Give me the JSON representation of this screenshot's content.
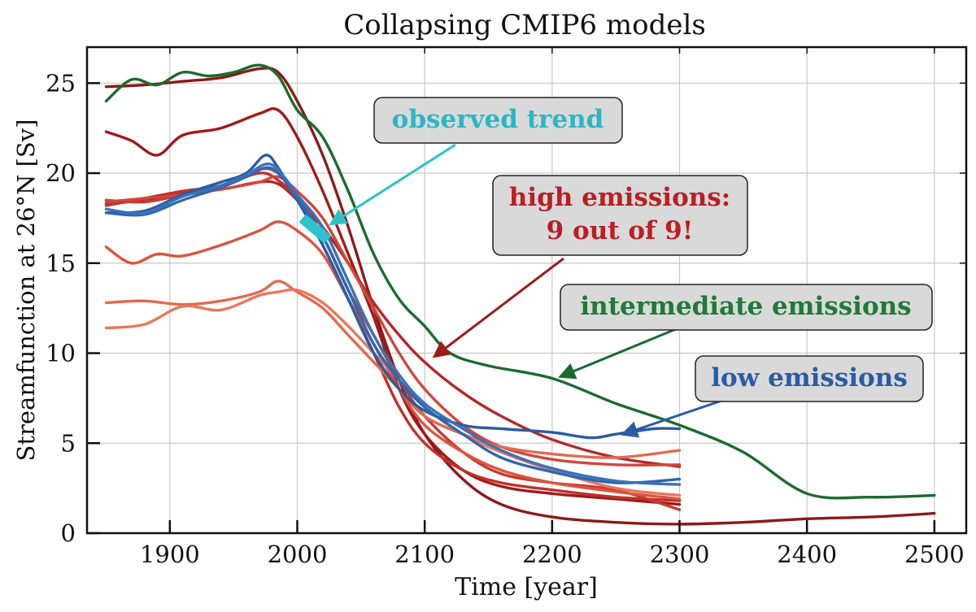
{
  "chart_data": {
    "type": "line",
    "title": "Collapsing CMIP6 models",
    "xlabel": "Time [year]",
    "ylabel": "Streamfunction at 26°N [Sv]",
    "xlim": [
      1835,
      2525
    ],
    "ylim": [
      0,
      27
    ],
    "xticks": [
      1900,
      2000,
      2100,
      2200,
      2300,
      2400,
      2500
    ],
    "yticks": [
      0,
      5,
      10,
      15,
      20,
      25
    ],
    "grid": true,
    "series": [
      {
        "group": "intermediate",
        "color": "#1b6b2e",
        "x": [
          1850,
          1870,
          1890,
          1910,
          1930,
          1950,
          1970,
          1985,
          2000,
          2020,
          2040,
          2060,
          2080,
          2100,
          2120,
          2150,
          2200,
          2250,
          2300,
          2350,
          2400,
          2450,
          2500
        ],
        "y": [
          24.0,
          25.2,
          24.9,
          25.6,
          25.4,
          25.6,
          26.0,
          25.4,
          23.5,
          22.0,
          19.0,
          15.5,
          13.0,
          11.5,
          10.0,
          9.3,
          8.6,
          7.2,
          6.0,
          4.5,
          2.2,
          2.0,
          2.1
        ]
      },
      {
        "group": "high",
        "color": "#8b1a1a",
        "x": [
          1850,
          1880,
          1910,
          1940,
          1970,
          1985,
          2000,
          2020,
          2040,
          2060,
          2080,
          2100,
          2130,
          2160,
          2200,
          2250,
          2300,
          2350,
          2400,
          2450,
          2500
        ],
        "y": [
          24.8,
          24.9,
          25.1,
          25.3,
          25.8,
          25.6,
          24.0,
          21.0,
          17.0,
          12.5,
          8.5,
          5.5,
          3.0,
          1.6,
          0.9,
          0.6,
          0.5,
          0.6,
          0.8,
          0.9,
          1.1
        ]
      },
      {
        "group": "high",
        "color": "#9e1b1b",
        "x": [
          1850,
          1870,
          1890,
          1910,
          1940,
          1970,
          1985,
          2000,
          2020,
          2040,
          2060,
          2080,
          2100,
          2130,
          2160,
          2200,
          2250,
          2300
        ],
        "y": [
          22.3,
          21.8,
          21.0,
          22.1,
          22.5,
          23.3,
          23.5,
          22.0,
          19.0,
          15.5,
          12.0,
          8.0,
          5.5,
          3.5,
          2.6,
          2.2,
          1.9,
          1.6
        ]
      },
      {
        "group": "high",
        "color": "#b52727",
        "x": [
          1850,
          1880,
          1910,
          1940,
          1970,
          1985,
          2000,
          2020,
          2040,
          2060,
          2080,
          2100,
          2130,
          2160,
          2200,
          2250,
          2300
        ],
        "y": [
          18.3,
          18.5,
          18.9,
          19.1,
          19.5,
          19.4,
          18.5,
          17.0,
          15.0,
          12.8,
          11.0,
          9.5,
          7.8,
          6.5,
          5.2,
          4.2,
          3.7
        ]
      },
      {
        "group": "high",
        "color": "#c0302b",
        "x": [
          1850,
          1880,
          1910,
          1940,
          1970,
          1985,
          2000,
          2020,
          2040,
          2060,
          2080,
          2100,
          2130,
          2160,
          2200,
          2250,
          2300
        ],
        "y": [
          18.2,
          18.6,
          19.0,
          19.3,
          20.0,
          19.6,
          18.5,
          16.0,
          13.0,
          10.0,
          7.0,
          5.0,
          3.5,
          2.8,
          2.4,
          2.0,
          1.8
        ]
      },
      {
        "group": "high",
        "color": "#c83a2f",
        "x": [
          1850,
          1880,
          1910,
          1940,
          1970,
          1985,
          2000,
          2020,
          2040,
          2060,
          2080,
          2100,
          2130,
          2160,
          2200,
          2250,
          2300
        ],
        "y": [
          18.5,
          18.4,
          18.8,
          19.3,
          20.2,
          20.0,
          18.8,
          16.5,
          13.5,
          11.0,
          8.5,
          6.5,
          4.5,
          3.3,
          2.8,
          2.4,
          1.3
        ]
      },
      {
        "group": "high",
        "color": "#d1463a",
        "x": [
          1850,
          1880,
          1910,
          1940,
          1970,
          1985,
          2000,
          2020,
          2040,
          2060,
          2080,
          2100,
          2130,
          2160,
          2200,
          2250,
          2300
        ],
        "y": [
          18.4,
          18.6,
          18.8,
          19.1,
          19.5,
          19.8,
          19.0,
          17.5,
          15.0,
          12.5,
          10.0,
          8.0,
          6.0,
          4.8,
          4.1,
          3.8,
          3.8
        ]
      },
      {
        "group": "high",
        "color": "#d9553f",
        "x": [
          1850,
          1870,
          1890,
          1910,
          1940,
          1970,
          1985,
          2000,
          2020,
          2040,
          2060,
          2080,
          2100,
          2130,
          2160,
          2200,
          2250,
          2300
        ],
        "y": [
          15.9,
          15.0,
          15.5,
          15.4,
          16.0,
          16.8,
          17.3,
          16.8,
          15.5,
          13.0,
          10.5,
          8.0,
          6.0,
          4.5,
          3.5,
          2.8,
          2.3,
          1.9
        ]
      },
      {
        "group": "high",
        "color": "#e06a4f",
        "x": [
          1850,
          1880,
          1910,
          1940,
          1970,
          1985,
          2000,
          2020,
          2040,
          2060,
          2080,
          2100,
          2130,
          2160,
          2200,
          2250,
          2300
        ],
        "y": [
          12.8,
          12.9,
          12.7,
          12.9,
          13.4,
          14.0,
          13.4,
          12.5,
          11.0,
          9.5,
          8.0,
          6.5,
          5.5,
          4.8,
          4.4,
          4.2,
          4.6
        ]
      },
      {
        "group": "high",
        "color": "#e8785c",
        "x": [
          1850,
          1880,
          1910,
          1940,
          1970,
          1985,
          2000,
          2020,
          2040,
          2060,
          2080,
          2100,
          2130,
          2160,
          2200,
          2250,
          2300
        ],
        "y": [
          11.4,
          11.6,
          12.6,
          12.4,
          13.2,
          13.4,
          13.5,
          12.8,
          11.5,
          10.0,
          8.5,
          7.0,
          5.5,
          4.5,
          3.5,
          2.5,
          2.1
        ]
      },
      {
        "group": "low",
        "color": "#2a5ca3",
        "x": [
          1850,
          1880,
          1910,
          1940,
          1960,
          1975,
          1985,
          2000,
          2020,
          2040,
          2060,
          2080,
          2100,
          2130,
          2160,
          2200,
          2230,
          2250,
          2280,
          2300
        ],
        "y": [
          17.8,
          17.9,
          18.8,
          19.5,
          20.0,
          21.0,
          20.3,
          18.5,
          16.0,
          13.0,
          10.0,
          8.0,
          6.8,
          6.0,
          5.8,
          5.6,
          5.3,
          5.5,
          5.8,
          5.8
        ]
      },
      {
        "group": "low",
        "color": "#2e67b0",
        "x": [
          1850,
          1880,
          1910,
          1940,
          1960,
          1975,
          1985,
          2000,
          2020,
          2040,
          2060,
          2080,
          2100,
          2130,
          2160,
          2200,
          2250,
          2300
        ],
        "y": [
          17.8,
          17.7,
          18.5,
          19.2,
          19.8,
          20.3,
          20.0,
          18.6,
          16.5,
          13.5,
          10.5,
          8.5,
          7.0,
          5.5,
          4.2,
          3.4,
          2.8,
          3.0
        ]
      },
      {
        "group": "low",
        "color": "#3a72b8",
        "x": [
          1850,
          1880,
          1910,
          1940,
          1960,
          1975,
          1985,
          2000,
          2020,
          2040,
          2060,
          2080,
          2100,
          2130,
          2160,
          2200,
          2250,
          2300
        ],
        "y": [
          18.0,
          17.8,
          18.7,
          19.3,
          19.9,
          20.5,
          20.2,
          18.8,
          17.0,
          14.0,
          11.0,
          8.8,
          7.2,
          5.8,
          4.6,
          3.6,
          2.9,
          2.7
        ]
      }
    ],
    "observed_trend": {
      "color": "#2ec4cf",
      "x": [
        2004,
        2024
      ],
      "y": [
        17.5,
        16.3
      ]
    },
    "annotations": [
      {
        "text": "observed trend",
        "color": "#2bb7c4",
        "arrow_color": "#2bc4c4"
      },
      {
        "text": "high emissions:",
        "text2": "9 out of 9!",
        "color": "#b81f24",
        "arrow_color": "#9e1b1b"
      },
      {
        "text": "intermediate emissions",
        "color": "#1f7a38",
        "arrow_color": "#1b6b2e"
      },
      {
        "text": "low emissions",
        "color": "#2a5ca3",
        "arrow_color": "#2a5ca3"
      }
    ]
  }
}
